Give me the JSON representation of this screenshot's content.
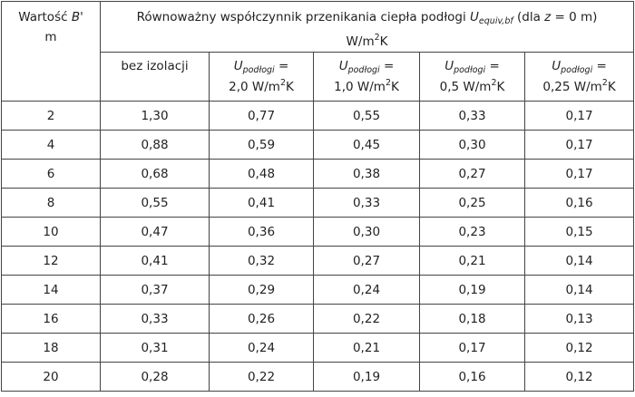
{
  "header": {
    "key_column": {
      "lines": [
        [
          {
            "text": "Wartość "
          },
          {
            "text": "B'",
            "style": "italic"
          }
        ],
        [
          {
            "text": "m"
          }
        ]
      ]
    },
    "group": {
      "lines": [
        [
          {
            "text": "Równoważny współczynnik przenikania ciepła podłogi "
          },
          {
            "text": "U",
            "style": "italic"
          },
          {
            "text": "equiv,bf",
            "style": "italic-sub"
          },
          {
            "text": " (dla "
          },
          {
            "text": "z",
            "style": "italic"
          },
          {
            "text": " = 0 m)"
          }
        ],
        [
          {
            "text": "W/m"
          },
          {
            "text": "2",
            "style": "sup"
          },
          {
            "text": "K"
          }
        ]
      ]
    },
    "columns": [
      {
        "lines": [
          [
            {
              "text": "bez izolacji"
            }
          ]
        ],
        "align": "top"
      },
      {
        "lines": [
          [
            {
              "text": "U",
              "style": "italic"
            },
            {
              "text": "podłogi",
              "style": "italic-sub"
            },
            {
              "text": " ="
            }
          ],
          [
            {
              "text": "2,0 W/m"
            },
            {
              "text": "2",
              "style": "sup"
            },
            {
              "text": "K"
            }
          ]
        ]
      },
      {
        "lines": [
          [
            {
              "text": "U",
              "style": "italic"
            },
            {
              "text": "podłogi",
              "style": "italic-sub"
            },
            {
              "text": " ="
            }
          ],
          [
            {
              "text": "1,0 W/m"
            },
            {
              "text": "2",
              "style": "sup"
            },
            {
              "text": "K"
            }
          ]
        ]
      },
      {
        "lines": [
          [
            {
              "text": "U",
              "style": "italic"
            },
            {
              "text": "podłogi",
              "style": "italic-sub"
            },
            {
              "text": " ="
            }
          ],
          [
            {
              "text": "0,5 W/m"
            },
            {
              "text": "2",
              "style": "sup"
            },
            {
              "text": "K"
            }
          ]
        ]
      },
      {
        "lines": [
          [
            {
              "text": "U",
              "style": "italic"
            },
            {
              "text": "podłogi",
              "style": "italic-sub"
            },
            {
              "text": " ="
            }
          ],
          [
            {
              "text": "0,25 W/m"
            },
            {
              "text": "2",
              "style": "sup"
            },
            {
              "text": "K"
            }
          ]
        ]
      }
    ]
  },
  "rows": [
    [
      "2",
      "1,30",
      "0,77",
      "0,55",
      "0,33",
      "0,17"
    ],
    [
      "4",
      "0,88",
      "0,59",
      "0,45",
      "0,30",
      "0,17"
    ],
    [
      "6",
      "0,68",
      "0,48",
      "0,38",
      "0,27",
      "0,17"
    ],
    [
      "8",
      "0,55",
      "0,41",
      "0,33",
      "0,25",
      "0,16"
    ],
    [
      "10",
      "0,47",
      "0,36",
      "0,30",
      "0,23",
      "0,15"
    ],
    [
      "12",
      "0,41",
      "0,32",
      "0,27",
      "0,21",
      "0,14"
    ],
    [
      "14",
      "0,37",
      "0,29",
      "0,24",
      "0,19",
      "0,14"
    ],
    [
      "16",
      "0,33",
      "0,26",
      "0,22",
      "0,18",
      "0,13"
    ],
    [
      "18",
      "0,31",
      "0,24",
      "0,21",
      "0,17",
      "0,12"
    ],
    [
      "20",
      "0,28",
      "0,22",
      "0,19",
      "0,16",
      "0,12"
    ]
  ]
}
